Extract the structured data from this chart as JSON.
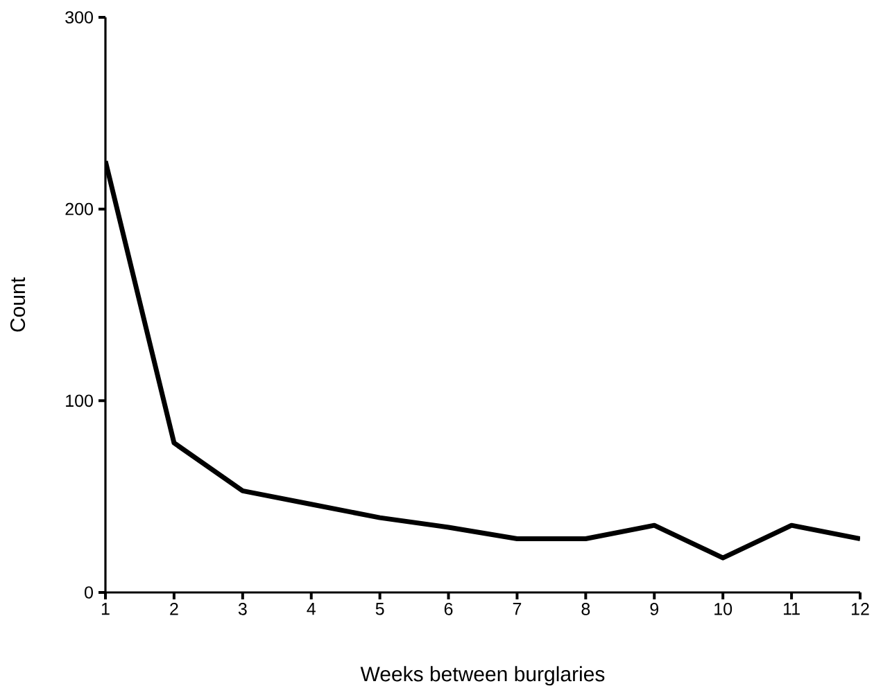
{
  "chart_data": {
    "type": "line",
    "xlabel": "Weeks between burglaries",
    "ylabel": "Count",
    "x": [
      1,
      2,
      3,
      4,
      5,
      6,
      7,
      8,
      9,
      10,
      11,
      12
    ],
    "values": [
      225,
      78,
      53,
      46,
      39,
      34,
      28,
      28,
      35,
      18,
      35,
      28
    ],
    "color": "#000000",
    "xlim": [
      1,
      12
    ],
    "xticks": [
      1,
      2,
      3,
      4,
      5,
      6,
      7,
      8,
      9,
      10,
      11,
      12
    ],
    "ylim": [
      0,
      300
    ],
    "yticks": [
      0,
      100,
      200,
      300
    ],
    "grid": false,
    "marker": "none",
    "line_style": "solid"
  }
}
